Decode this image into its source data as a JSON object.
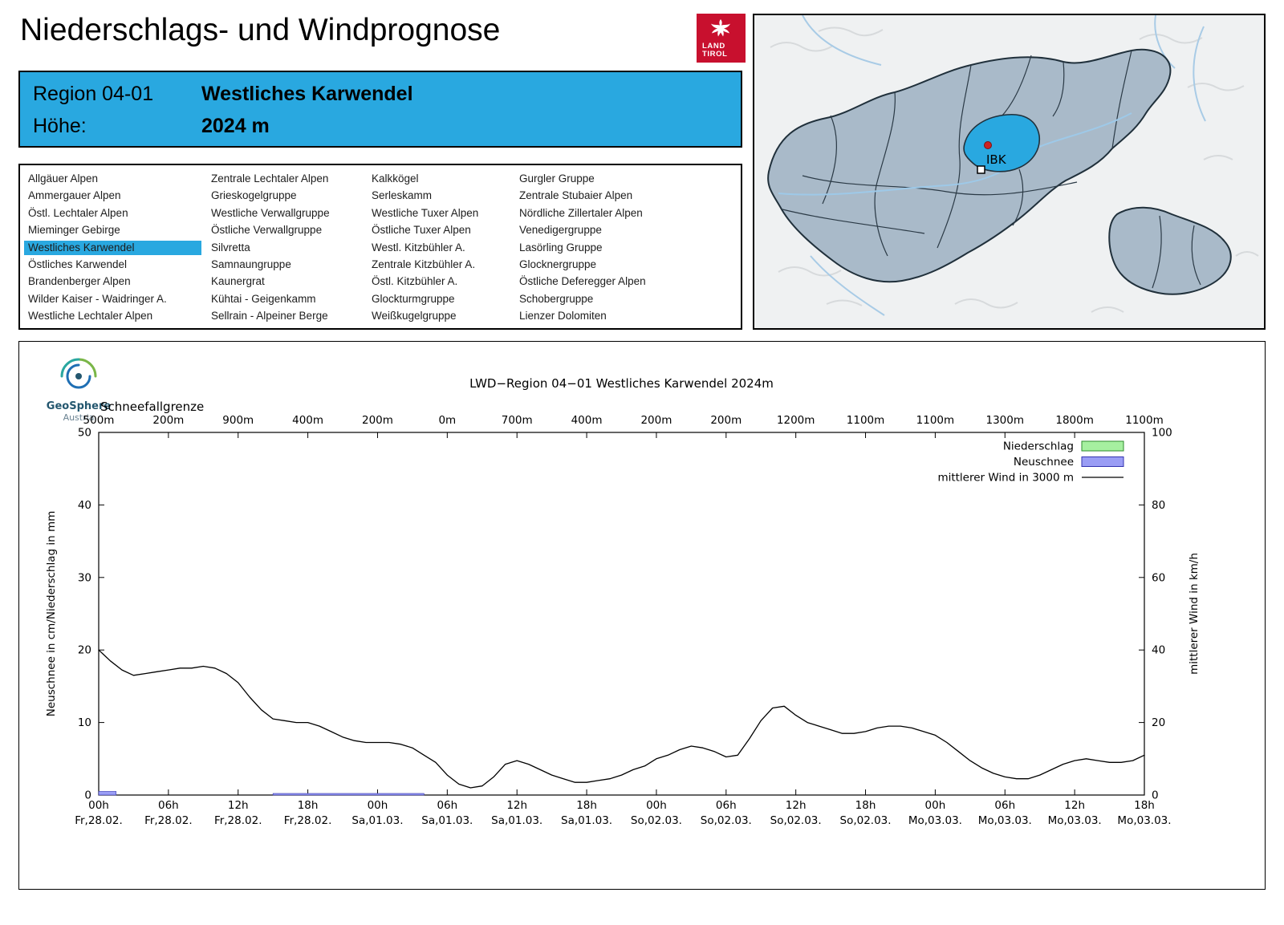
{
  "header": {
    "title": "Niederschlags- und Windprognose",
    "logo": {
      "line1": "LAND",
      "line2": "TIROL"
    }
  },
  "region_header": {
    "region_label": "Region 04-01",
    "region_value": "Westliches Karwendel",
    "altitude_label": "Höhe:",
    "altitude_value": "2024 m"
  },
  "region_list": {
    "selected": "Westliches Karwendel",
    "columns": [
      [
        "Allgäuer Alpen",
        "Ammergauer Alpen",
        "Östl. Lechtaler Alpen",
        "Mieminger Gebirge",
        "Westliches Karwendel",
        "Östliches Karwendel",
        "Brandenberger Alpen",
        "Wilder Kaiser - Waidringer A.",
        "Westliche Lechtaler Alpen"
      ],
      [
        "Zentrale Lechtaler Alpen",
        "Grieskogelgruppe",
        "Westliche Verwallgruppe",
        "Östliche Verwallgruppe",
        "Silvretta",
        "Samnaungruppe",
        "Kaunergrat",
        "Kühtai - Geigenkamm",
        "Sellrain - Alpeiner Berge"
      ],
      [
        "Kalkkögel",
        "Serleskamm",
        "Westliche Tuxer Alpen",
        "Östliche Tuxer Alpen",
        "Westl. Kitzbühler A.",
        "Zentrale Kitzbühler A.",
        "Östl. Kitzbühler A.",
        "Glockturmgruppe",
        "Weißkugelgruppe"
      ],
      [
        "Gurgler Gruppe",
        "Zentrale Stubaier Alpen",
        "Nördliche Zillertaler Alpen",
        "Venedigergruppe",
        "Lasörling Gruppe",
        "Glocknergruppe",
        "Östliche Deferegger Alpen",
        "Schobergruppe",
        "Lienzer Dolomiten"
      ]
    ]
  },
  "map": {
    "marker_label": "IBK"
  },
  "logos": {
    "geosphere_name": "GeoSphere",
    "geosphere_sub": "Austria"
  },
  "colors": {
    "accent_blue": "#29a8e0",
    "logo_red": "#c8102e",
    "map_region_fill": "#a9bac9",
    "niederschlag_fill": "#a6f0a0",
    "niederschlag_stroke": "#2e8b2e",
    "neuschnee_fill": "#9a9df5",
    "neuschnee_stroke": "#3434b0",
    "wind_line": "#000000"
  },
  "chart_data": {
    "type": "line+bar",
    "title": "LWD−Region 04−01 Westliches Karwendel 2024m",
    "snowline_label": "Schneefallgrenze",
    "snowline_values": [
      "500m",
      "200m",
      "900m",
      "400m",
      "200m",
      "0m",
      "700m",
      "400m",
      "200m",
      "200m",
      "1200m",
      "1100m",
      "1100m",
      "1300m",
      "1800m",
      "1100m"
    ],
    "ylabel_left": "Neuschnee in cm/Niederschlag in mm",
    "ylabel_right": "mittlerer Wind in km/h",
    "ylim_left": [
      0,
      50
    ],
    "ylim_right": [
      0,
      100
    ],
    "yticks_left": [
      0,
      10,
      20,
      30,
      40,
      50
    ],
    "yticks_right": [
      0,
      20,
      40,
      60,
      80,
      100
    ],
    "hours_span": 90,
    "tick_interval_hours": 6,
    "x_hour_labels": [
      "00h",
      "06h",
      "12h",
      "18h",
      "00h",
      "06h",
      "12h",
      "18h",
      "00h",
      "06h",
      "12h",
      "18h",
      "00h",
      "06h",
      "12h",
      "18h"
    ],
    "x_date_labels": [
      "Fr,28.02.",
      "Fr,28.02.",
      "Fr,28.02.",
      "Fr,28.02.",
      "Sa,01.03.",
      "Sa,01.03.",
      "Sa,01.03.",
      "Sa,01.03.",
      "So,02.03.",
      "So,02.03.",
      "So,02.03.",
      "So,02.03.",
      "Mo,03.03.",
      "Mo,03.03.",
      "Mo,03.03.",
      "Mo,03.03."
    ],
    "legend": [
      {
        "label": "Niederschlag",
        "type": "box",
        "fill": "#a6f0a0",
        "stroke": "#2e8b2e"
      },
      {
        "label": "Neuschnee",
        "type": "box",
        "fill": "#9a9df5",
        "stroke": "#3434b0"
      },
      {
        "label": "mittlerer Wind in 3000 m",
        "type": "line",
        "stroke": "#000000"
      }
    ],
    "wind_kmh": [
      40,
      37,
      34.5,
      33,
      33.5,
      34,
      34.5,
      35,
      35,
      35.5,
      35,
      33.5,
      31,
      27,
      23.5,
      21,
      20.5,
      20,
      20,
      19,
      17.5,
      16,
      15,
      14.5,
      14.5,
      14.5,
      14,
      13,
      11,
      9,
      5.5,
      3,
      2,
      2.5,
      5,
      8.5,
      9.5,
      8.5,
      7,
      5.5,
      4.5,
      3.5,
      3.5,
      4,
      4.5,
      5.5,
      7,
      8,
      10,
      11,
      12.5,
      13.5,
      13,
      12,
      10.5,
      11,
      15.5,
      20.5,
      24,
      24.5,
      22,
      20,
      19,
      18,
      17,
      17,
      17.5,
      18.5,
      19,
      19,
      18.5,
      17.5,
      16.5,
      14.5,
      12,
      9.5,
      7.5,
      6,
      5,
      4.5,
      4.5,
      5.5,
      7,
      8.5,
      9.5,
      10,
      9.5,
      9,
      9,
      9.5,
      11
    ],
    "neuschnee_cm_segments": [
      [
        0,
        1.5,
        0.5
      ],
      [
        15,
        28,
        0.22
      ]
    ],
    "niederschlag_mm_segments": []
  }
}
